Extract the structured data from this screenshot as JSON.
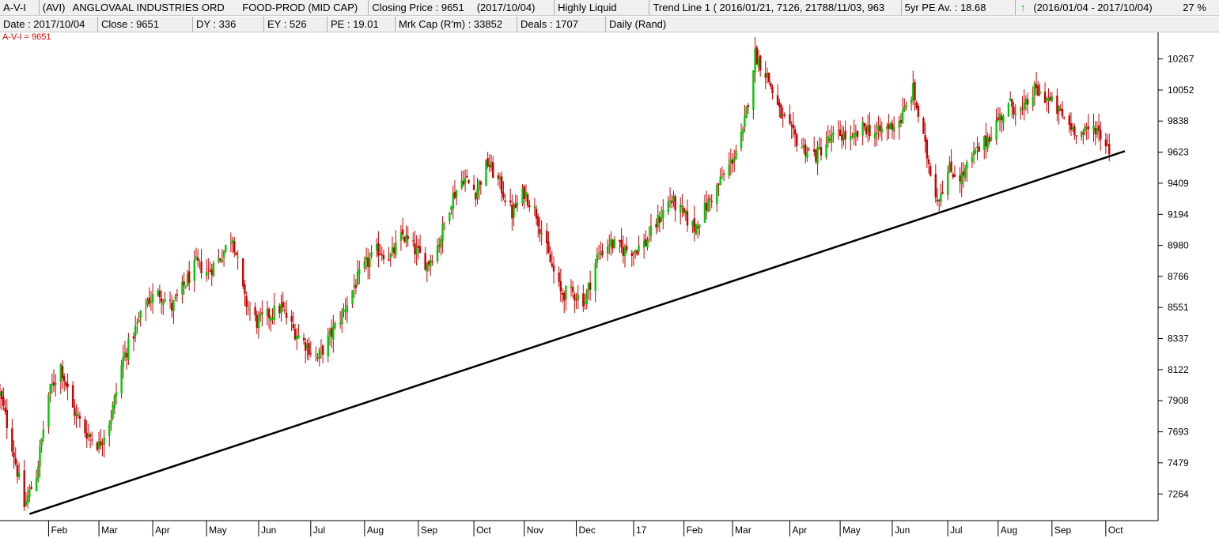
{
  "header": {
    "code": "A-V-I",
    "ticker": "(AVI)",
    "company": "ANGLOVAAL INDUSTRIES ORD",
    "sector": "FOOD-PROD (MID CAP)",
    "closing_price": "Closing Price : 9651",
    "closing_date": "(2017/10/04)",
    "liquidity": "Highly Liquid",
    "trend_line": "Trend Line 1 ( 2016/01/21, 7126, 21788/11/03, 963",
    "pe_avg": "5yr PE Av. : 18.68",
    "period": "(2016/01/04 - 2017/10/04)",
    "period_change": "27 %"
  },
  "stats": {
    "date": "Date : 2017/10/04",
    "close": "Close : 9651",
    "dy": "DY : 336",
    "ey": "EY : 526",
    "pe": "PE : 19.01",
    "mkt_cap": "Mrk Cap (R'm) : 33852",
    "deals": "Deals : 1707",
    "interval": "Daily (Rand)"
  },
  "overlay_label": "A-V-I = 9651",
  "colors": {
    "up": "#00c800",
    "down": "#c80000",
    "trend": "#000000",
    "label": "#e00000",
    "arrow": "#00c000"
  },
  "icons": {
    "trend_arrow": "up-arrow-icon"
  },
  "chart_data": {
    "type": "candlestick",
    "title": "ANGLOVAAL INDUSTRIES ORD",
    "xlabel": "",
    "ylabel": "",
    "ylim": [
      7080,
      10450
    ],
    "y_ticks": [
      10267,
      10052,
      9838,
      9623,
      9409,
      9194,
      8980,
      8766,
      8551,
      8337,
      8122,
      7908,
      7693,
      7479,
      7264
    ],
    "x_range": [
      "2016-01-04",
      "2017-10-13"
    ],
    "x_ticks": [
      {
        "label": "Feb",
        "date": "2016-02-01"
      },
      {
        "label": "Mar",
        "date": "2016-03-01"
      },
      {
        "label": "Apr",
        "date": "2016-04-01"
      },
      {
        "label": "May",
        "date": "2016-05-02"
      },
      {
        "label": "Jun",
        "date": "2016-06-01"
      },
      {
        "label": "Jul",
        "date": "2016-07-01"
      },
      {
        "label": "Aug",
        "date": "2016-08-01"
      },
      {
        "label": "Sep",
        "date": "2016-09-01"
      },
      {
        "label": "Oct",
        "date": "2016-10-03"
      },
      {
        "label": "Nov",
        "date": "2016-11-01"
      },
      {
        "label": "Dec",
        "date": "2016-12-01"
      },
      {
        "label": "17",
        "date": "2017-01-03"
      },
      {
        "label": "Feb",
        "date": "2017-02-01"
      },
      {
        "label": "Mar",
        "date": "2017-03-01"
      },
      {
        "label": "Apr",
        "date": "2017-04-03"
      },
      {
        "label": "May",
        "date": "2017-05-02"
      },
      {
        "label": "Jun",
        "date": "2017-06-01"
      },
      {
        "label": "Jul",
        "date": "2017-07-03"
      },
      {
        "label": "Aug",
        "date": "2017-08-01"
      },
      {
        "label": "Sep",
        "date": "2017-09-01"
      },
      {
        "label": "Oct",
        "date": "2017-10-02"
      }
    ],
    "trend_line": {
      "start": [
        "2016-01-21",
        7126
      ],
      "end": [
        "2017-10-13",
        9630
      ]
    },
    "close_series": [
      [
        "2016-01-04",
        7950
      ],
      [
        "2016-01-11",
        7600
      ],
      [
        "2016-01-18",
        7180
      ],
      [
        "2016-01-25",
        7400
      ],
      [
        "2016-02-01",
        7950
      ],
      [
        "2016-02-08",
        8150
      ],
      [
        "2016-02-15",
        7850
      ],
      [
        "2016-02-22",
        7700
      ],
      [
        "2016-03-01",
        7600
      ],
      [
        "2016-03-08",
        7800
      ],
      [
        "2016-03-15",
        8200
      ],
      [
        "2016-03-22",
        8400
      ],
      [
        "2016-03-29",
        8600
      ],
      [
        "2016-04-05",
        8650
      ],
      [
        "2016-04-12",
        8550
      ],
      [
        "2016-04-19",
        8700
      ],
      [
        "2016-04-26",
        8850
      ],
      [
        "2016-05-03",
        8800
      ],
      [
        "2016-05-10",
        8900
      ],
      [
        "2016-05-17",
        9050
      ],
      [
        "2016-05-24",
        8600
      ],
      [
        "2016-05-31",
        8450
      ],
      [
        "2016-06-07",
        8500
      ],
      [
        "2016-06-14",
        8550
      ],
      [
        "2016-06-21",
        8400
      ],
      [
        "2016-06-28",
        8300
      ],
      [
        "2016-07-05",
        8200
      ],
      [
        "2016-07-12",
        8350
      ],
      [
        "2016-07-19",
        8500
      ],
      [
        "2016-07-26",
        8700
      ],
      [
        "2016-08-02",
        8850
      ],
      [
        "2016-08-09",
        8950
      ],
      [
        "2016-08-16",
        8900
      ],
      [
        "2016-08-23",
        9050
      ],
      [
        "2016-08-30",
        8950
      ],
      [
        "2016-09-06",
        8850
      ],
      [
        "2016-09-13",
        9000
      ],
      [
        "2016-09-20",
        9300
      ],
      [
        "2016-09-27",
        9450
      ],
      [
        "2016-10-04",
        9350
      ],
      [
        "2016-10-11",
        9550
      ],
      [
        "2016-10-18",
        9400
      ],
      [
        "2016-10-25",
        9200
      ],
      [
        "2016-11-01",
        9350
      ],
      [
        "2016-11-08",
        9200
      ],
      [
        "2016-11-15",
        8900
      ],
      [
        "2016-11-22",
        8650
      ],
      [
        "2016-11-29",
        8650
      ],
      [
        "2016-12-06",
        8600
      ],
      [
        "2016-12-13",
        8900
      ],
      [
        "2016-12-20",
        9000
      ],
      [
        "2016-12-27",
        8950
      ],
      [
        "2017-01-03",
        8950
      ],
      [
        "2017-01-10",
        9000
      ],
      [
        "2017-01-17",
        9150
      ],
      [
        "2017-01-24",
        9300
      ],
      [
        "2017-01-31",
        9200
      ],
      [
        "2017-02-07",
        9100
      ],
      [
        "2017-02-14",
        9250
      ],
      [
        "2017-02-21",
        9400
      ],
      [
        "2017-02-28",
        9550
      ],
      [
        "2017-03-07",
        9750
      ],
      [
        "2017-03-14",
        10300
      ],
      [
        "2017-03-21",
        10150
      ],
      [
        "2017-03-28",
        9900
      ],
      [
        "2017-04-04",
        9750
      ],
      [
        "2017-04-11",
        9650
      ],
      [
        "2017-04-18",
        9600
      ],
      [
        "2017-04-25",
        9700
      ],
      [
        "2017-05-02",
        9750
      ],
      [
        "2017-05-09",
        9700
      ],
      [
        "2017-05-16",
        9800
      ],
      [
        "2017-05-23",
        9750
      ],
      [
        "2017-05-30",
        9800
      ],
      [
        "2017-06-06",
        9850
      ],
      [
        "2017-06-13",
        10050
      ],
      [
        "2017-06-20",
        9650
      ],
      [
        "2017-06-27",
        9300
      ],
      [
        "2017-07-04",
        9500
      ],
      [
        "2017-07-11",
        9450
      ],
      [
        "2017-07-18",
        9600
      ],
      [
        "2017-07-25",
        9700
      ],
      [
        "2017-08-01",
        9850
      ],
      [
        "2017-08-08",
        9950
      ],
      [
        "2017-08-15",
        9900
      ],
      [
        "2017-08-22",
        10050
      ],
      [
        "2017-08-29",
        10000
      ],
      [
        "2017-09-05",
        9900
      ],
      [
        "2017-09-12",
        9800
      ],
      [
        "2017-09-19",
        9750
      ],
      [
        "2017-09-26",
        9800
      ],
      [
        "2017-10-04",
        9651
      ]
    ]
  }
}
